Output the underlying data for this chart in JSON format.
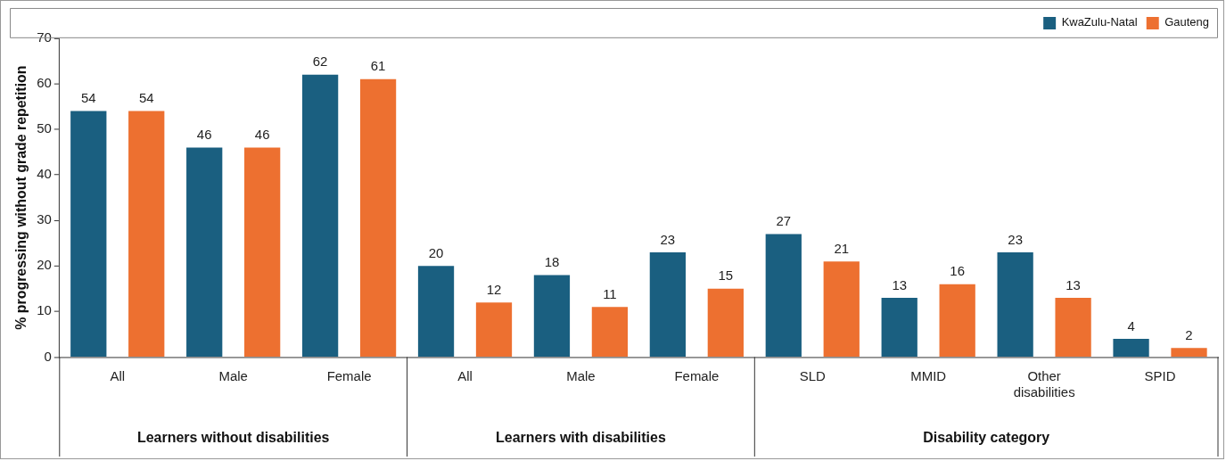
{
  "chart_data": {
    "type": "bar",
    "ylabel": "% progressing without grade repetition",
    "categories": [
      "All",
      "Male",
      "Female",
      "All",
      "Male",
      "Female",
      "SLD",
      "MMID",
      "Other disabilities",
      "SPID"
    ],
    "series": [
      {
        "name": "KwaZulu-Natal",
        "color": "#1a5f80",
        "values": [
          54,
          46,
          62,
          20,
          18,
          23,
          27,
          13,
          23,
          4
        ]
      },
      {
        "name": "Gauteng",
        "color": "#ed7030",
        "values": [
          54,
          46,
          61,
          12,
          11,
          15,
          21,
          16,
          13,
          2
        ]
      }
    ],
    "ylim": [
      0,
      70
    ],
    "yticks": [
      0,
      10,
      20,
      30,
      40,
      50,
      60,
      70
    ],
    "grid": false,
    "legend": "top right",
    "data_labels": true,
    "annotations": [
      "Learners without disabilities",
      "Learners with disabilities",
      "Disability category"
    ]
  }
}
